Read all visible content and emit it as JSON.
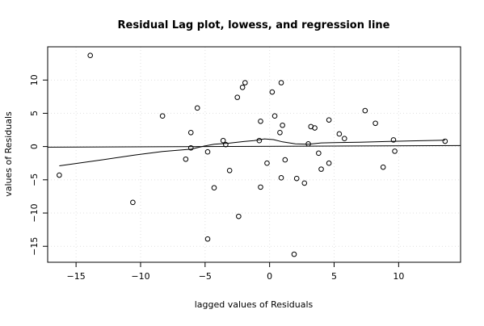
{
  "chart_data": {
    "type": "scatter",
    "title": "Residual Lag plot, lowess, and regression line",
    "xlabel": "lagged values of Residuals",
    "ylabel": "values of Residuals",
    "xlim": [
      -17.2,
      14.8
    ],
    "ylim": [
      -17.4,
      15.0
    ],
    "x_ticks": [
      -15,
      -10,
      -5,
      0,
      5,
      10
    ],
    "y_ticks": [
      -15,
      -10,
      -5,
      0,
      5,
      10
    ],
    "x_tick_labels": [
      "−15",
      "−10",
      "−5",
      "0",
      "5",
      "10"
    ],
    "y_tick_labels": [
      "−15",
      "−10",
      "−5",
      "0",
      "5",
      "10"
    ],
    "grid": true,
    "series": [
      {
        "type": "scatter",
        "marker": "open-circle",
        "points": [
          {
            "x": -16.3,
            "y": -4.3
          },
          {
            "x": -13.9,
            "y": 13.7
          },
          {
            "x": -10.6,
            "y": -8.4
          },
          {
            "x": -8.3,
            "y": 4.6
          },
          {
            "x": -6.5,
            "y": -1.9
          },
          {
            "x": -6.1,
            "y": 2.1
          },
          {
            "x": -6.1,
            "y": -0.2
          },
          {
            "x": -5.6,
            "y": 5.8
          },
          {
            "x": -4.8,
            "y": -0.8
          },
          {
            "x": -4.8,
            "y": -13.9
          },
          {
            "x": -4.3,
            "y": -6.2
          },
          {
            "x": -3.6,
            "y": 0.9
          },
          {
            "x": -3.4,
            "y": 0.3
          },
          {
            "x": -3.1,
            "y": -3.6
          },
          {
            "x": -2.5,
            "y": 7.4
          },
          {
            "x": -2.4,
            "y": -10.5
          },
          {
            "x": -2.1,
            "y": 8.9
          },
          {
            "x": -1.9,
            "y": 9.6
          },
          {
            "x": -0.8,
            "y": 0.9
          },
          {
            "x": -0.7,
            "y": 3.8
          },
          {
            "x": -0.7,
            "y": -6.1
          },
          {
            "x": -0.2,
            "y": -2.5
          },
          {
            "x": 0.2,
            "y": 8.2
          },
          {
            "x": 0.4,
            "y": 4.6
          },
          {
            "x": 0.8,
            "y": 2.1
          },
          {
            "x": 0.9,
            "y": 9.6
          },
          {
            "x": 0.9,
            "y": -4.7
          },
          {
            "x": 1.0,
            "y": 3.2
          },
          {
            "x": 1.2,
            "y": -2.0
          },
          {
            "x": 1.9,
            "y": -16.2
          },
          {
            "x": 2.1,
            "y": -4.8
          },
          {
            "x": 2.7,
            "y": -5.5
          },
          {
            "x": 3.0,
            "y": 0.4
          },
          {
            "x": 3.2,
            "y": 3.0
          },
          {
            "x": 3.5,
            "y": 2.8
          },
          {
            "x": 3.8,
            "y": -1.0
          },
          {
            "x": 4.0,
            "y": -3.4
          },
          {
            "x": 4.6,
            "y": 4.0
          },
          {
            "x": 4.6,
            "y": -2.5
          },
          {
            "x": 5.4,
            "y": 1.9
          },
          {
            "x": 5.8,
            "y": 1.2
          },
          {
            "x": 7.4,
            "y": 5.4
          },
          {
            "x": 8.2,
            "y": 3.5
          },
          {
            "x": 8.8,
            "y": -3.1
          },
          {
            "x": 9.6,
            "y": 1.0
          },
          {
            "x": 9.7,
            "y": -0.7
          },
          {
            "x": 13.6,
            "y": 0.8
          }
        ]
      },
      {
        "type": "line",
        "style": "lowess",
        "points": [
          {
            "x": -16.3,
            "y": -2.9
          },
          {
            "x": -13.0,
            "y": -2.0
          },
          {
            "x": -10.5,
            "y": -1.3
          },
          {
            "x": -8.3,
            "y": -0.75
          },
          {
            "x": -6.1,
            "y": -0.4
          },
          {
            "x": -5.0,
            "y": 0.1
          },
          {
            "x": -4.3,
            "y": 0.35
          },
          {
            "x": -3.2,
            "y": 0.5
          },
          {
            "x": -2.0,
            "y": 0.75
          },
          {
            "x": -1.2,
            "y": 0.9
          },
          {
            "x": -0.4,
            "y": 1.15
          },
          {
            "x": 0.3,
            "y": 1.05
          },
          {
            "x": 1.0,
            "y": 0.7
          },
          {
            "x": 2.0,
            "y": 0.4
          },
          {
            "x": 3.0,
            "y": 0.35
          },
          {
            "x": 4.0,
            "y": 0.55
          },
          {
            "x": 5.0,
            "y": 0.6
          },
          {
            "x": 7.0,
            "y": 0.65
          },
          {
            "x": 9.0,
            "y": 0.75
          },
          {
            "x": 11.0,
            "y": 0.85
          },
          {
            "x": 13.6,
            "y": 0.95
          }
        ]
      },
      {
        "type": "line",
        "style": "regression",
        "points": [
          {
            "x": -17.2,
            "y": -0.1
          },
          {
            "x": 14.8,
            "y": 0.15
          }
        ]
      }
    ]
  }
}
